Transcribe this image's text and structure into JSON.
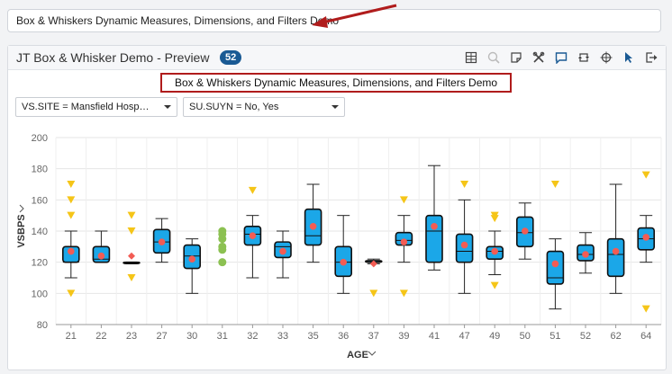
{
  "top_input": {
    "value": "Box & Whiskers Dynamic Measures, Dimensions, and Filters Demo"
  },
  "panel": {
    "title": "JT Box & Whisker Demo - Preview",
    "badge": "52",
    "toolbar_icons": [
      "table-icon",
      "zoom-icon",
      "note-icon",
      "tools-icon",
      "comment-icon",
      "refresh-icon",
      "target-icon",
      "pointer-icon",
      "export-icon"
    ]
  },
  "subtitle": "Box & Whiskers Dynamic Measures, Dimensions, and Filters Demo",
  "filters": [
    {
      "label": "VS.SITE = Mansfield Hospita..."
    },
    {
      "label": "SU.SUYN = No, Yes"
    }
  ],
  "colors": {
    "box": "#1ba7e8",
    "mean": "#f25c54",
    "outlier": "#f5c518",
    "point": "#8cc152",
    "badge": "#1a5a94",
    "highlight": "#b01c1c"
  },
  "chart_data": {
    "type": "box",
    "xlabel": "AGE",
    "ylabel": "VSBPS",
    "ylim": [
      80,
      200
    ],
    "yticks": [
      80,
      100,
      120,
      140,
      160,
      180,
      200
    ],
    "grid": true,
    "categories": [
      "21",
      "22",
      "23",
      "27",
      "30",
      "31",
      "32",
      "33",
      "35",
      "36",
      "37",
      "39",
      "41",
      "47",
      "49",
      "50",
      "51",
      "52",
      "62",
      "64"
    ],
    "boxes": [
      {
        "min": 110,
        "q1": 120,
        "median": 120,
        "q3": 130,
        "max": 140,
        "mean": 127,
        "outliers": [
          100,
          150,
          160,
          170
        ]
      },
      {
        "min": 120,
        "q1": 120,
        "median": 122,
        "q3": 130,
        "max": 140,
        "mean": 124,
        "outliers": []
      },
      {
        "min": 120,
        "q1": 120,
        "median": 120,
        "q3": 120,
        "max": 120,
        "mean": 124,
        "outliers": [
          110,
          140,
          150
        ]
      },
      {
        "min": 120,
        "q1": 126,
        "median": 133,
        "q3": 141,
        "max": 148,
        "mean": 133,
        "outliers": []
      },
      {
        "min": 100,
        "q1": 116,
        "median": 124,
        "q3": 131,
        "max": 135,
        "mean": 122,
        "outliers": []
      },
      {
        "min": null,
        "q1": null,
        "median": null,
        "q3": null,
        "max": null,
        "mean": null,
        "points": [
          120,
          128,
          130,
          135,
          138,
          140
        ],
        "outliers": []
      },
      {
        "min": 110,
        "q1": 131,
        "median": 138,
        "q3": 143,
        "max": 150,
        "mean": 137,
        "outliers": [
          166
        ]
      },
      {
        "min": 110,
        "q1": 123,
        "median": 130,
        "q3": 133,
        "max": 140,
        "mean": 127,
        "outliers": []
      },
      {
        "min": 120,
        "q1": 131,
        "median": 137,
        "q3": 154,
        "max": 170,
        "mean": 143,
        "outliers": []
      },
      {
        "min": 100,
        "q1": 111,
        "median": 120,
        "q3": 130,
        "max": 150,
        "mean": 120,
        "outliers": []
      },
      {
        "min": 119,
        "q1": 120,
        "median": 120,
        "q3": 121,
        "max": 122,
        "mean": 119,
        "outliers": [
          100
        ]
      },
      {
        "min": 120,
        "q1": 131,
        "median": 134,
        "q3": 139,
        "max": 150,
        "mean": 133,
        "outliers": [
          100,
          160
        ]
      },
      {
        "min": 115,
        "q1": 120,
        "median": 140,
        "q3": 150,
        "max": 182,
        "mean": 143,
        "outliers": []
      },
      {
        "min": 100,
        "q1": 120,
        "median": 127,
        "q3": 138,
        "max": 160,
        "mean": 131,
        "outliers": [
          170
        ]
      },
      {
        "min": 112,
        "q1": 122,
        "median": 127,
        "q3": 130,
        "max": 140,
        "mean": 127,
        "outliers": [
          105,
          148,
          150
        ]
      },
      {
        "min": 122,
        "q1": 130,
        "median": 139,
        "q3": 149,
        "max": 158,
        "mean": 140,
        "outliers": []
      },
      {
        "min": 90,
        "q1": 106,
        "median": 110,
        "q3": 127,
        "max": 135,
        "mean": 119,
        "outliers": [
          170
        ]
      },
      {
        "min": 113,
        "q1": 121,
        "median": 125,
        "q3": 131,
        "max": 139,
        "mean": 125,
        "outliers": []
      },
      {
        "min": 100,
        "q1": 111,
        "median": 125,
        "q3": 135,
        "max": 170,
        "mean": 127,
        "outliers": []
      },
      {
        "min": 120,
        "q1": 128,
        "median": 135,
        "q3": 142,
        "max": 150,
        "mean": 136,
        "outliers": [
          90,
          176
        ]
      }
    ]
  }
}
